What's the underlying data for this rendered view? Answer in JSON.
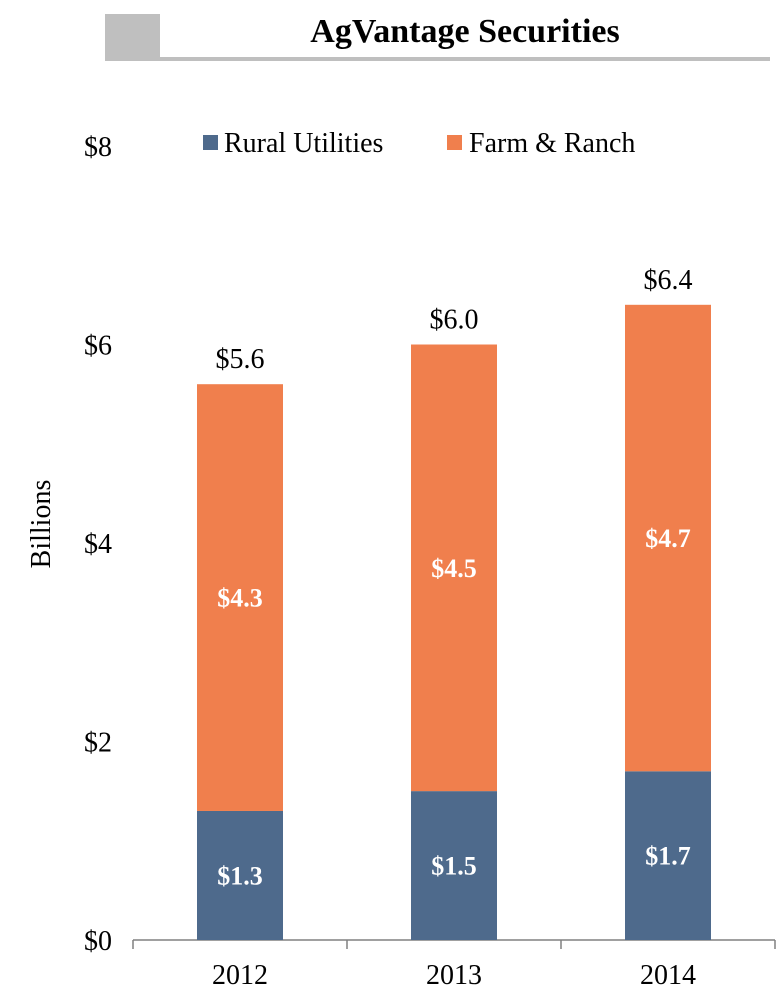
{
  "header": {
    "title": "AgVantage Securities"
  },
  "colors": {
    "rural_utilities": "#4e6a8c",
    "farm_ranch": "#f07f4d",
    "accent": "#bfbfbf",
    "segment_label": "#ffffff"
  },
  "chart_data": {
    "type": "bar",
    "stacked": true,
    "categories": [
      "2012",
      "2013",
      "2014"
    ],
    "series": [
      {
        "name": "Rural Utilities",
        "values": [
          1.3,
          1.5,
          1.7
        ],
        "labels": [
          "$1.3",
          "$1.5",
          "$1.7"
        ]
      },
      {
        "name": "Farm & Ranch",
        "values": [
          4.3,
          4.5,
          4.7
        ],
        "labels": [
          "$4.3",
          "$4.5",
          "$4.7"
        ]
      }
    ],
    "totals": [
      5.6,
      6.0,
      6.4
    ],
    "total_labels": [
      "$5.6",
      "$6.0",
      "$6.4"
    ],
    "ylabel": "Billions",
    "ylim": [
      0,
      8
    ],
    "yticks": [
      0,
      2,
      4,
      6,
      8
    ],
    "ytick_labels": [
      "$0",
      "$2",
      "$4",
      "$6",
      "$8"
    ],
    "grid": false,
    "legend_position": "top"
  }
}
